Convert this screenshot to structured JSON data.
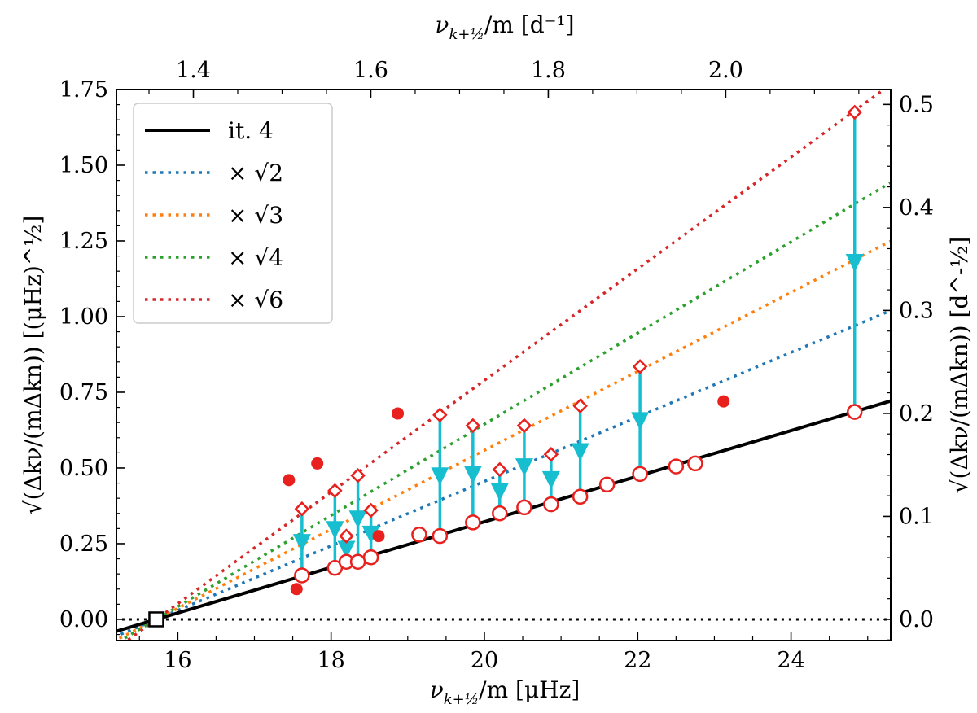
{
  "chart_data": {
    "type": "scatter",
    "x_axis": {
      "label_main": "ν",
      "label_sub": "k+½",
      "label_rest": "/m [μHz]",
      "range": [
        15.2,
        25.3
      ],
      "ticks": [
        16,
        18,
        20,
        22,
        24
      ],
      "tick_labels": [
        "16",
        "18",
        "20",
        "22",
        "24"
      ]
    },
    "top_axis": {
      "label_main": "ν",
      "label_sub": "k+½",
      "label_rest": "/m [d⁻¹]",
      "ticks": [
        1.4,
        1.6,
        1.8,
        2.0
      ],
      "tick_labels": [
        "1.4",
        "1.6",
        "1.8",
        "2.0"
      ],
      "factor_d_per_uHz": 0.0864
    },
    "y_axis": {
      "label": "√(Δkν/(mΔkn)) [(μHz)^½]",
      "range": [
        -0.07,
        1.75
      ],
      "ticks": [
        0,
        0.25,
        0.5,
        0.75,
        1.0,
        1.25,
        1.5,
        1.75
      ],
      "tick_labels": [
        "0.00",
        "0.25",
        "0.50",
        "0.75",
        "1.00",
        "1.25",
        "1.50",
        "1.75"
      ]
    },
    "right_axis": {
      "label": "√(Δkν/(mΔkn)) [d^-½]",
      "ticks": [
        0,
        0.1,
        0.2,
        0.3,
        0.4,
        0.5
      ],
      "tick_labels": [
        "0.0",
        "0.1",
        "0.2",
        "0.3",
        "0.4",
        "0.5"
      ],
      "factor": 0.294
    },
    "fit_line": {
      "name": "it. 4",
      "x0": 15.72,
      "slope": 0.0753,
      "color": "#000000"
    },
    "scaled_lines": [
      {
        "name": "× √2",
        "factor": 1.414,
        "color": "#1f77b4"
      },
      {
        "name": "× √3",
        "factor": 1.732,
        "color": "#ff7f0e"
      },
      {
        "name": "× √4",
        "factor": 2.0,
        "color": "#2ca02c"
      },
      {
        "name": "× √6",
        "factor": 2.449,
        "color": "#d62728"
      }
    ],
    "zero_point": {
      "x": 15.72,
      "y": 0.0
    },
    "filled_points": [
      {
        "x": 17.45,
        "y": 0.46
      },
      {
        "x": 17.55,
        "y": 0.1
      },
      {
        "x": 17.82,
        "y": 0.515
      },
      {
        "x": 18.62,
        "y": 0.275
      },
      {
        "x": 18.87,
        "y": 0.68
      },
      {
        "x": 23.12,
        "y": 0.72
      }
    ],
    "open_circles": [
      {
        "x": 17.62,
        "y": 0.145
      },
      {
        "x": 18.05,
        "y": 0.17
      },
      {
        "x": 18.2,
        "y": 0.19
      },
      {
        "x": 18.35,
        "y": 0.19
      },
      {
        "x": 18.52,
        "y": 0.205
      },
      {
        "x": 19.15,
        "y": 0.28
      },
      {
        "x": 19.42,
        "y": 0.275
      },
      {
        "x": 19.85,
        "y": 0.32
      },
      {
        "x": 20.2,
        "y": 0.35
      },
      {
        "x": 20.52,
        "y": 0.37
      },
      {
        "x": 20.87,
        "y": 0.38
      },
      {
        "x": 21.25,
        "y": 0.405
      },
      {
        "x": 21.6,
        "y": 0.445
      },
      {
        "x": 22.03,
        "y": 0.48
      },
      {
        "x": 22.5,
        "y": 0.505
      },
      {
        "x": 22.75,
        "y": 0.515
      },
      {
        "x": 24.83,
        "y": 0.685
      }
    ],
    "diamonds": [
      {
        "x": 17.62,
        "y": 0.365
      },
      {
        "x": 18.05,
        "y": 0.425
      },
      {
        "x": 18.2,
        "y": 0.275
      },
      {
        "x": 18.35,
        "y": 0.475
      },
      {
        "x": 18.52,
        "y": 0.36
      },
      {
        "x": 19.42,
        "y": 0.675
      },
      {
        "x": 19.85,
        "y": 0.64
      },
      {
        "x": 20.2,
        "y": 0.495
      },
      {
        "x": 20.52,
        "y": 0.64
      },
      {
        "x": 20.87,
        "y": 0.545
      },
      {
        "x": 21.25,
        "y": 0.705
      },
      {
        "x": 22.03,
        "y": 0.835
      },
      {
        "x": 24.83,
        "y": 1.675
      }
    ],
    "arrows": [
      {
        "x": 17.62,
        "y_top": 0.365,
        "y_bottom": 0.145
      },
      {
        "x": 18.05,
        "y_top": 0.425,
        "y_bottom": 0.17
      },
      {
        "x": 18.2,
        "y_top": 0.275,
        "y_bottom": 0.19
      },
      {
        "x": 18.35,
        "y_top": 0.475,
        "y_bottom": 0.19
      },
      {
        "x": 18.52,
        "y_top": 0.36,
        "y_bottom": 0.205
      },
      {
        "x": 19.42,
        "y_top": 0.675,
        "y_bottom": 0.275
      },
      {
        "x": 19.85,
        "y_top": 0.64,
        "y_bottom": 0.32
      },
      {
        "x": 20.2,
        "y_top": 0.495,
        "y_bottom": 0.35
      },
      {
        "x": 20.52,
        "y_top": 0.64,
        "y_bottom": 0.37
      },
      {
        "x": 20.87,
        "y_top": 0.545,
        "y_bottom": 0.38
      },
      {
        "x": 21.25,
        "y_top": 0.705,
        "y_bottom": 0.405
      },
      {
        "x": 22.03,
        "y_top": 0.835,
        "y_bottom": 0.48
      },
      {
        "x": 24.83,
        "y_top": 1.675,
        "y_bottom": 0.685
      }
    ],
    "colors": {
      "marker": "#e8211e",
      "arrow": "#17becf",
      "frame": "#000000"
    },
    "legend": {
      "location": "upper-left",
      "entries": [
        {
          "label": "it. 4",
          "color": "#000000",
          "style": "solid"
        },
        {
          "label": "× √2",
          "color": "#1f77b4",
          "style": "dotted"
        },
        {
          "label": "× √3",
          "color": "#ff7f0e",
          "style": "dotted"
        },
        {
          "label": "× √4",
          "color": "#2ca02c",
          "style": "dotted"
        },
        {
          "label": "× √6",
          "color": "#d62728",
          "style": "dotted"
        }
      ]
    }
  }
}
